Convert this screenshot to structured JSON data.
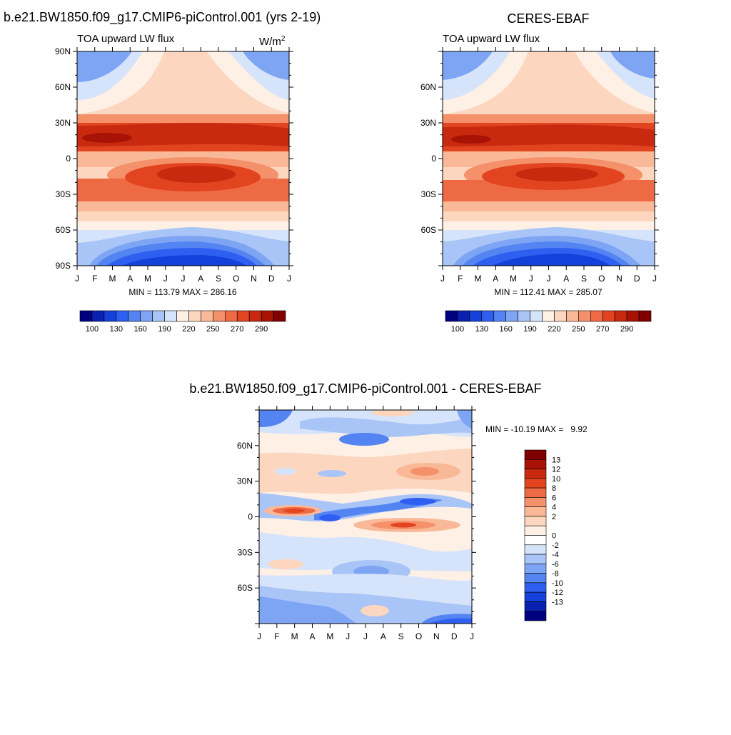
{
  "colors": {
    "abs_palette": [
      "#000080",
      "#0a21b0",
      "#1441d9",
      "#2f5ff0",
      "#5384f2",
      "#7ea5f4",
      "#a9c4f7",
      "#d6e4fb",
      "#fff0e6",
      "#fcd6bf",
      "#f9b897",
      "#f4906a",
      "#ee6a45",
      "#e34420",
      "#c8290f",
      "#a81305",
      "#800000"
    ],
    "diff_palette": [
      "#000080",
      "#0a21b0",
      "#1441d9",
      "#2f5ff0",
      "#5384f2",
      "#7ea5f4",
      "#a9c4f7",
      "#d6e4fb",
      "#ffffff",
      "#fff0e6",
      "#fcd6bf",
      "#f9b897",
      "#f4906a",
      "#ee6a45",
      "#e34420",
      "#c8290f",
      "#a81305",
      "#800000"
    ]
  },
  "chart_data": [
    {
      "type": "heatmap",
      "id": "model",
      "title": "b.e21.BW1850.f09_g17.CMIP6-piControl.001 (yrs 2-19)",
      "subtitle_left": "TOA upward LW flux",
      "units_base": "W/m",
      "units_exp": "2",
      "x_tick_labels": [
        "J",
        "F",
        "M",
        "A",
        "M",
        "J",
        "J",
        "A",
        "S",
        "O",
        "N",
        "D",
        "J"
      ],
      "y_tick_labels": [
        "90N",
        "60N",
        "30N",
        "0",
        "30S",
        "60S",
        "90S"
      ],
      "y_tick_values": [
        90,
        60,
        30,
        0,
        -30,
        -60,
        -90
      ],
      "ylim": [
        -90,
        90
      ],
      "min_max_text": "MIN = 113.79 MAX = 286.16",
      "levels": [
        100,
        110,
        120,
        130,
        140,
        150,
        160,
        170,
        180,
        190,
        200,
        210,
        220,
        230,
        240,
        250,
        260,
        270,
        280,
        290
      ],
      "colorbar_labels": [
        "100",
        "130",
        "160",
        "190",
        "220",
        "250",
        "270",
        "290"
      ],
      "value_range": [
        113.79,
        286.16
      ]
    },
    {
      "type": "heatmap",
      "id": "obs",
      "title": "CERES-EBAF",
      "subtitle_left": "TOA upward LW flux",
      "x_tick_labels": [
        "J",
        "F",
        "M",
        "A",
        "M",
        "J",
        "J",
        "A",
        "S",
        "O",
        "N",
        "D",
        "J"
      ],
      "y_tick_labels": [
        "60N",
        "30N",
        "0",
        "30S",
        "60S"
      ],
      "y_tick_values": [
        60,
        30,
        0,
        -30,
        -60
      ],
      "ylim": [
        -90,
        90
      ],
      "min_max_text": "MIN = 112.41 MAX = 285.07",
      "colorbar_labels": [
        "100",
        "130",
        "160",
        "190",
        "220",
        "250",
        "270",
        "290"
      ],
      "value_range": [
        112.41,
        285.07
      ]
    },
    {
      "type": "heatmap",
      "id": "diff",
      "title": "b.e21.BW1850.f09_g17.CMIP6-piControl.001 - CERES-EBAF",
      "x_tick_labels": [
        "J",
        "F",
        "M",
        "A",
        "M",
        "J",
        "J",
        "A",
        "S",
        "O",
        "N",
        "D",
        "J"
      ],
      "y_tick_labels": [
        "60N",
        "30N",
        "0",
        "30S",
        "60S"
      ],
      "y_tick_values": [
        60,
        30,
        0,
        -30,
        -60
      ],
      "ylim": [
        -90,
        90
      ],
      "min_max_text": "MIN = -10.19 MAX =   9.92",
      "colorbar_labels": [
        "13",
        "12",
        "10",
        "8",
        "6",
        "4",
        "2",
        "0",
        "-2",
        "-4",
        "-6",
        "-8",
        "-10",
        "-12",
        "-13"
      ],
      "value_range": [
        -10.19,
        9.92
      ]
    }
  ]
}
